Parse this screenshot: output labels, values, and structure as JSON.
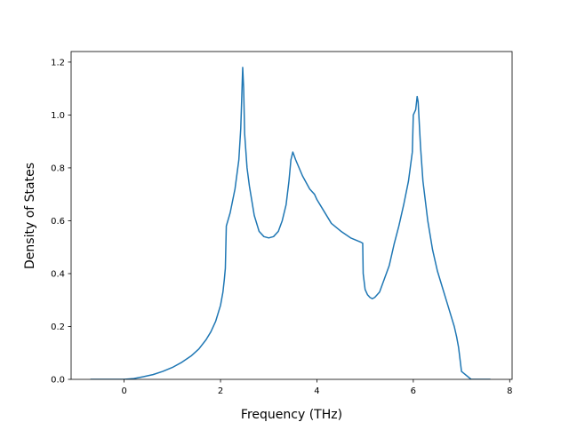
{
  "chart_data": {
    "type": "line",
    "title": "",
    "xlabel": "Frequency (THz)",
    "ylabel": "Density of States",
    "xlim": [
      -1.1,
      8.05
    ],
    "ylim": [
      0.0,
      1.24
    ],
    "xticks": [
      0,
      2,
      4,
      6,
      8
    ],
    "xtick_labels": [
      "0",
      "2",
      "4",
      "6",
      "8"
    ],
    "yticks": [
      0.0,
      0.2,
      0.4,
      0.6,
      0.8,
      1.0,
      1.2
    ],
    "ytick_labels": [
      "0.0",
      "0.2",
      "0.4",
      "0.6",
      "0.8",
      "1.0",
      "1.2"
    ],
    "grid": false,
    "colors": {
      "series": "#1f77b4",
      "axes": "#000000",
      "background": "#ffffff"
    },
    "series": [
      {
        "x": [
          -0.7,
          -0.4,
          0.0,
          0.2,
          0.4,
          0.6,
          0.8,
          1.0,
          1.2,
          1.4,
          1.55,
          1.7,
          1.8,
          1.9,
          2.0,
          2.05,
          2.08,
          2.1,
          2.12,
          2.2,
          2.3,
          2.38,
          2.42,
          2.46,
          2.48,
          2.5,
          2.55,
          2.6,
          2.7,
          2.8,
          2.9,
          3.0,
          3.1,
          3.2,
          3.28,
          3.36,
          3.42,
          3.46,
          3.5,
          3.56,
          3.7,
          3.85,
          3.95,
          4.0,
          4.1,
          4.3,
          4.5,
          4.7,
          4.9,
          4.95,
          4.96,
          5.0,
          5.05,
          5.1,
          5.15,
          5.2,
          5.3,
          5.4,
          5.5,
          5.6,
          5.7,
          5.8,
          5.9,
          5.98,
          6.0,
          6.05,
          6.08,
          6.1,
          6.15,
          6.2,
          6.3,
          6.4,
          6.5,
          6.6,
          6.7,
          6.8,
          6.85,
          6.9,
          6.94,
          7.0,
          7.2,
          7.4,
          7.6
        ],
        "y": [
          0.0,
          0.0,
          0.0,
          0.003,
          0.01,
          0.018,
          0.03,
          0.045,
          0.065,
          0.09,
          0.115,
          0.15,
          0.18,
          0.22,
          0.28,
          0.33,
          0.38,
          0.42,
          0.58,
          0.63,
          0.72,
          0.83,
          0.95,
          1.18,
          1.1,
          0.93,
          0.8,
          0.73,
          0.62,
          0.56,
          0.54,
          0.535,
          0.54,
          0.56,
          0.6,
          0.66,
          0.75,
          0.83,
          0.86,
          0.83,
          0.77,
          0.72,
          0.7,
          0.68,
          0.65,
          0.59,
          0.56,
          0.535,
          0.52,
          0.515,
          0.4,
          0.34,
          0.32,
          0.31,
          0.305,
          0.31,
          0.33,
          0.38,
          0.43,
          0.51,
          0.58,
          0.66,
          0.75,
          0.86,
          1.0,
          1.02,
          1.07,
          1.05,
          0.88,
          0.75,
          0.6,
          0.49,
          0.41,
          0.35,
          0.29,
          0.23,
          0.2,
          0.16,
          0.12,
          0.03,
          0.0,
          0.0,
          0.0
        ]
      }
    ]
  }
}
